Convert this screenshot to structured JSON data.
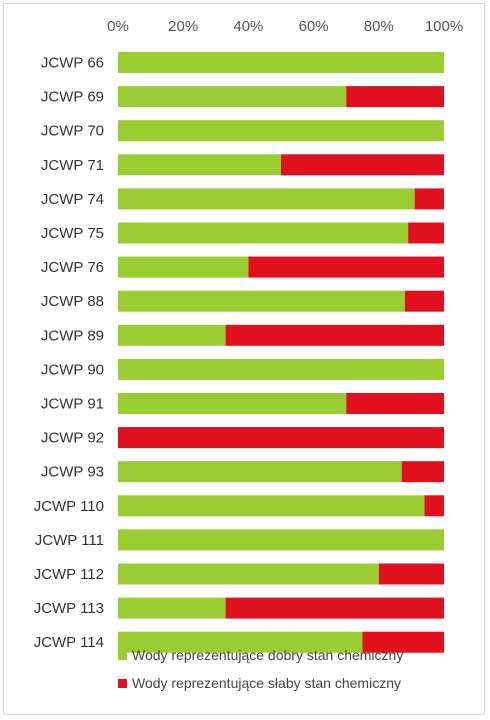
{
  "chart_data": {
    "type": "bar",
    "stacked": true,
    "orientation": "horizontal",
    "xlim": [
      0,
      100
    ],
    "x_ticks": [
      "0%",
      "20%",
      "40%",
      "60%",
      "80%",
      "100%"
    ],
    "categories": [
      "JCWP 66",
      "JCWP 69",
      "JCWP 70",
      "JCWP 71",
      "JCWP 74",
      "JCWP 75",
      "JCWP 76",
      "JCWP 88",
      "JCWP 89",
      "JCWP 90",
      "JCWP 91",
      "JCWP 92",
      "JCWP 93",
      "JCWP 110",
      "JCWP 111",
      "JCWP 112",
      "JCWP 113",
      "JCWP 114"
    ],
    "series": [
      {
        "name": "Wody reprezentujące dobry stan chemiczny",
        "color": "#9acd32",
        "values": [
          100,
          70,
          100,
          50,
          91,
          89,
          40,
          88,
          33,
          100,
          70,
          0,
          87,
          94,
          100,
          80,
          33,
          75
        ]
      },
      {
        "name": "Wody reprezentujące słaby stan chemiczny",
        "color": "#e0101e",
        "values": [
          0,
          30,
          0,
          50,
          9,
          11,
          60,
          12,
          67,
          0,
          30,
          100,
          13,
          6,
          0,
          20,
          67,
          25
        ]
      }
    ],
    "grid": false,
    "legend_position": "bottom"
  }
}
